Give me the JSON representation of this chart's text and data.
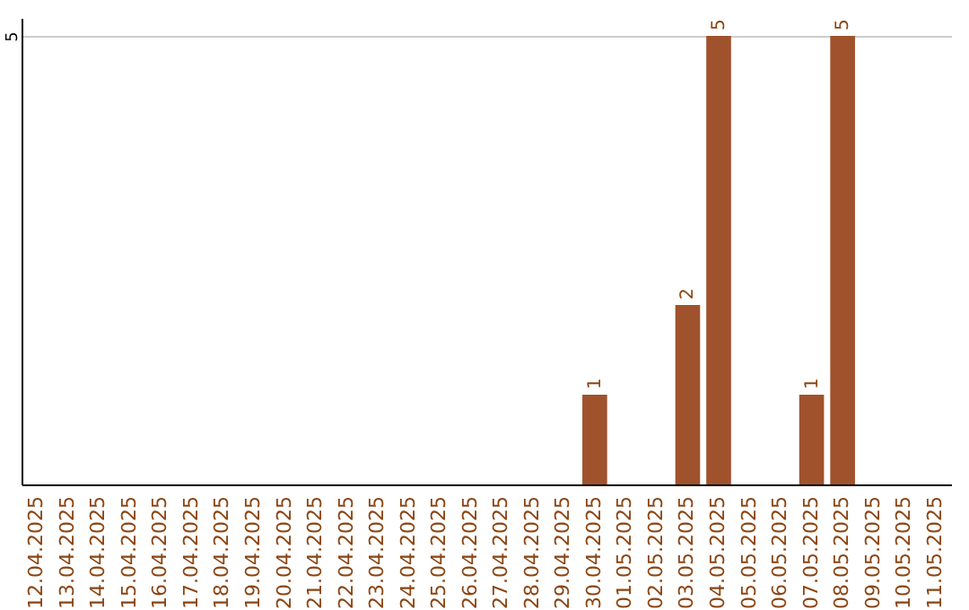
{
  "chart_data": {
    "type": "bar",
    "categories": [
      "12.04.2025",
      "13.04.2025",
      "14.04.2025",
      "15.04.2025",
      "16.04.2025",
      "17.04.2025",
      "18.04.2025",
      "19.04.2025",
      "20.04.2025",
      "21.04.2025",
      "22.04.2025",
      "23.04.2025",
      "24.04.2025",
      "25.04.2025",
      "26.04.2025",
      "27.04.2025",
      "28.04.2025",
      "29.04.2025",
      "30.04.2025",
      "01.05.2025",
      "02.05.2025",
      "03.05.2025",
      "04.05.2025",
      "05.05.2025",
      "06.05.2025",
      "07.05.2025",
      "08.05.2025",
      "09.05.2025",
      "10.05.2025",
      "11.05.2025"
    ],
    "values": [
      null,
      null,
      null,
      null,
      null,
      null,
      null,
      null,
      null,
      null,
      null,
      null,
      null,
      null,
      null,
      null,
      null,
      null,
      1,
      null,
      null,
      2,
      5,
      null,
      null,
      1,
      5,
      null,
      null,
      null
    ],
    "color": "#a0522d",
    "ylim": [
      0,
      5.2
    ],
    "yticks": [
      5
    ],
    "grid": true,
    "data_labels": true
  }
}
